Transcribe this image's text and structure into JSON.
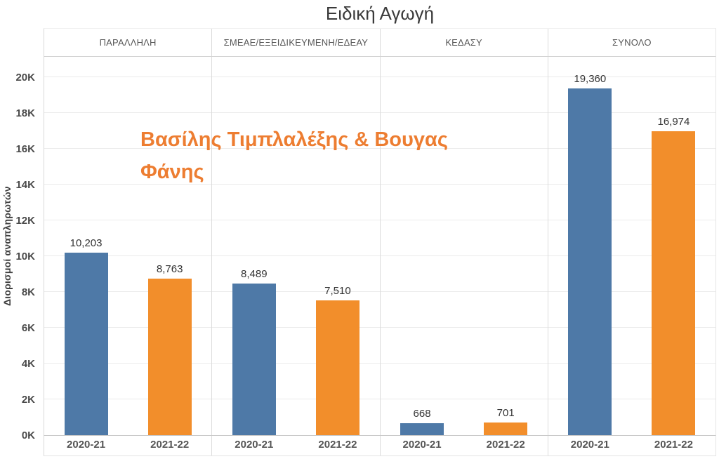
{
  "title": "Ειδική Αγωγή",
  "watermark": {
    "text": "Βασίλης Τιμπλαλέξης & Βουγας Φάνης",
    "color": "#ED7D31"
  },
  "chart_data": {
    "type": "bar",
    "title": "Ειδική Αγωγή",
    "ylabel": "Διορισμοί αναπληρωτών",
    "xlabel": "",
    "ylim": [
      0,
      20000
    ],
    "ytick_interval": 2000,
    "ytick_labels": [
      "0K",
      "2K",
      "4K",
      "6K",
      "8K",
      "10K",
      "12K",
      "14K",
      "16K",
      "18K",
      "20K"
    ],
    "grid": "horizontal",
    "legend": "none",
    "categories": [
      "2020-21",
      "2021-22"
    ],
    "series_colors": {
      "2020-21": "#4E79A7",
      "2021-22": "#F28E2B"
    },
    "panels": [
      {
        "header": "ΠΑΡΑΛΛΗΛΗ",
        "values": [
          10203,
          8763
        ],
        "value_labels": [
          "10,203",
          "8,763"
        ]
      },
      {
        "header": "ΣΜΕΑΕ/ΕΞΕΙΔΙΚΕΥΜΕΝΗ/ΕΔΕΑΥ",
        "values": [
          8489,
          7510
        ],
        "value_labels": [
          "8,489",
          "7,510"
        ]
      },
      {
        "header": "ΚΕΔΑΣΥ",
        "values": [
          668,
          701
        ],
        "value_labels": [
          "668",
          "701"
        ]
      },
      {
        "header": "ΣΥΝΟΛΟ",
        "values": [
          19360,
          16974
        ],
        "value_labels": [
          "19,360",
          "16,974"
        ]
      }
    ]
  }
}
